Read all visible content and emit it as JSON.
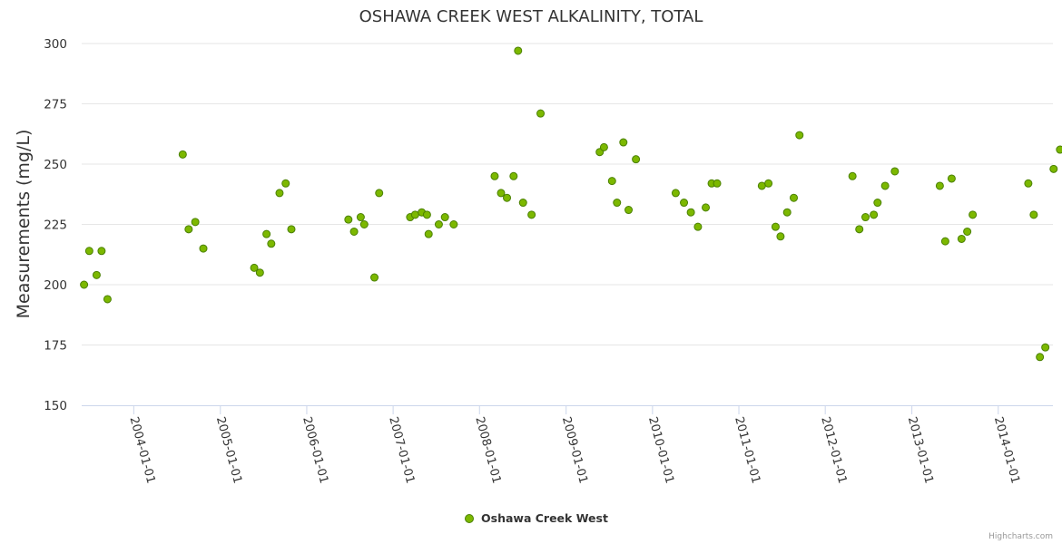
{
  "chart_data": {
    "type": "scatter",
    "title": "OSHAWA CREEK WEST ALKALINITY, TOTAL",
    "ylabel": "Measurements (mg/L)",
    "xlabel": "",
    "ylim": [
      150,
      300
    ],
    "yticks": [
      150,
      175,
      200,
      225,
      250,
      275,
      300
    ],
    "xlim": [
      "2003-05-26",
      "2014-08-20"
    ],
    "xticks": [
      "2004-01-01",
      "2005-01-01",
      "2006-01-01",
      "2007-01-01",
      "2008-01-01",
      "2009-01-01",
      "2010-01-01",
      "2011-01-01",
      "2012-01-01",
      "2013-01-01",
      "2014-01-01"
    ],
    "grid": true,
    "legend": "bottom-center",
    "colors": {
      "marker_fill": "#7cb800",
      "marker_stroke": "#4a8000"
    },
    "series": [
      {
        "name": "Oshawa Creek West",
        "points": [
          {
            "x": "2003-06-05",
            "y": 200
          },
          {
            "x": "2003-06-27",
            "y": 214
          },
          {
            "x": "2003-07-28",
            "y": 204
          },
          {
            "x": "2003-08-18",
            "y": 214
          },
          {
            "x": "2003-09-12",
            "y": 194
          },
          {
            "x": "2004-07-26",
            "y": 254
          },
          {
            "x": "2004-08-20",
            "y": 223
          },
          {
            "x": "2004-09-17",
            "y": 226
          },
          {
            "x": "2004-10-21",
            "y": 215
          },
          {
            "x": "2005-05-24",
            "y": 207
          },
          {
            "x": "2005-06-17",
            "y": 205
          },
          {
            "x": "2005-07-15",
            "y": 221
          },
          {
            "x": "2005-08-04",
            "y": 217
          },
          {
            "x": "2005-09-08",
            "y": 238
          },
          {
            "x": "2005-10-04",
            "y": 242
          },
          {
            "x": "2005-10-28",
            "y": 223
          },
          {
            "x": "2006-06-26",
            "y": 227
          },
          {
            "x": "2006-07-20",
            "y": 222
          },
          {
            "x": "2006-08-17",
            "y": 228
          },
          {
            "x": "2006-09-01",
            "y": 225
          },
          {
            "x": "2006-10-14",
            "y": 203
          },
          {
            "x": "2006-11-03",
            "y": 238
          },
          {
            "x": "2007-03-14",
            "y": 228
          },
          {
            "x": "2007-04-04",
            "y": 229
          },
          {
            "x": "2007-05-02",
            "y": 230
          },
          {
            "x": "2007-05-24",
            "y": 229
          },
          {
            "x": "2007-05-31",
            "y": 221
          },
          {
            "x": "2007-07-13",
            "y": 225
          },
          {
            "x": "2007-08-08",
            "y": 228
          },
          {
            "x": "2007-09-14",
            "y": 225
          },
          {
            "x": "2008-03-05",
            "y": 245
          },
          {
            "x": "2008-04-01",
            "y": 238
          },
          {
            "x": "2008-04-26",
            "y": 236
          },
          {
            "x": "2008-05-24",
            "y": 245
          },
          {
            "x": "2008-06-12",
            "y": 297
          },
          {
            "x": "2008-07-03",
            "y": 234
          },
          {
            "x": "2008-08-08",
            "y": 229
          },
          {
            "x": "2008-09-15",
            "y": 271
          },
          {
            "x": "2009-05-23",
            "y": 255
          },
          {
            "x": "2009-06-10",
            "y": 257
          },
          {
            "x": "2009-07-14",
            "y": 243
          },
          {
            "x": "2009-08-04",
            "y": 234
          },
          {
            "x": "2009-08-31",
            "y": 259
          },
          {
            "x": "2009-09-22",
            "y": 231
          },
          {
            "x": "2009-10-23",
            "y": 252
          },
          {
            "x": "2010-04-09",
            "y": 238
          },
          {
            "x": "2010-05-14",
            "y": 234
          },
          {
            "x": "2010-06-12",
            "y": 230
          },
          {
            "x": "2010-07-12",
            "y": 224
          },
          {
            "x": "2010-08-14",
            "y": 232
          },
          {
            "x": "2010-09-08",
            "y": 242
          },
          {
            "x": "2010-10-01",
            "y": 242
          },
          {
            "x": "2011-04-08",
            "y": 241
          },
          {
            "x": "2011-05-06",
            "y": 242
          },
          {
            "x": "2011-06-05",
            "y": 224
          },
          {
            "x": "2011-06-26",
            "y": 220
          },
          {
            "x": "2011-07-24",
            "y": 230
          },
          {
            "x": "2011-08-21",
            "y": 236
          },
          {
            "x": "2011-09-14",
            "y": 262
          },
          {
            "x": "2012-04-25",
            "y": 245
          },
          {
            "x": "2012-05-24",
            "y": 223
          },
          {
            "x": "2012-06-19",
            "y": 228
          },
          {
            "x": "2012-07-24",
            "y": 229
          },
          {
            "x": "2012-08-09",
            "y": 234
          },
          {
            "x": "2012-09-10",
            "y": 241
          },
          {
            "x": "2012-10-21",
            "y": 247
          },
          {
            "x": "2013-04-29",
            "y": 241
          },
          {
            "x": "2013-05-22",
            "y": 218
          },
          {
            "x": "2013-06-18",
            "y": 244
          },
          {
            "x": "2013-07-30",
            "y": 219
          },
          {
            "x": "2013-08-23",
            "y": 222
          },
          {
            "x": "2013-09-15",
            "y": 229
          },
          {
            "x": "2014-05-08",
            "y": 242
          },
          {
            "x": "2014-05-31",
            "y": 229
          },
          {
            "x": "2014-06-26",
            "y": 170
          },
          {
            "x": "2014-07-19",
            "y": 174
          },
          {
            "x": "2014-08-23",
            "y": 248
          },
          {
            "x": "2014-09-19",
            "y": 256
          }
        ]
      }
    ]
  },
  "credits": "Highcharts.com"
}
